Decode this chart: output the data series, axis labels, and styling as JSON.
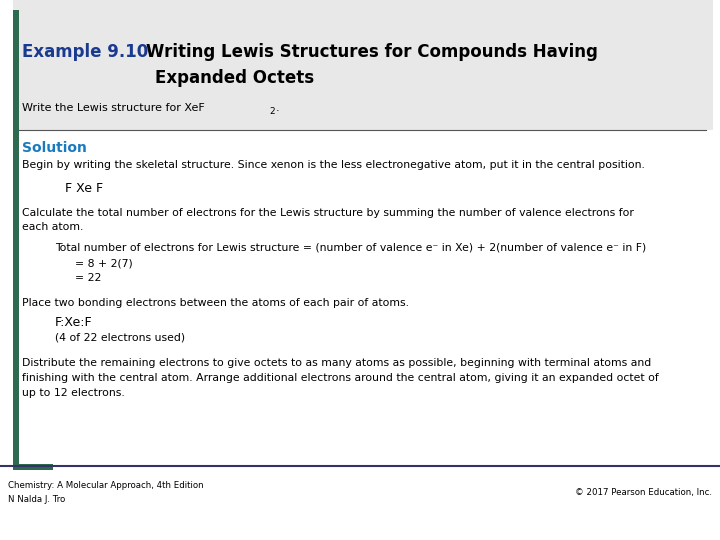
{
  "bg_color": "#ffffff",
  "header_bg": "#e8e8e8",
  "green_accent": "#2d6a4f",
  "blue_title": "#1a3a8f",
  "solution_color": "#1a7abf",
  "title_example": "Example 9.10",
  "footer_left1": "Chemistry: A Molecular Approach, 4th Edition",
  "footer_left2": "N Nalda J. Tro",
  "footer_right": "© 2017 Pearson Education, Inc.",
  "line_color": "#555555",
  "footer_line_color": "#333366"
}
